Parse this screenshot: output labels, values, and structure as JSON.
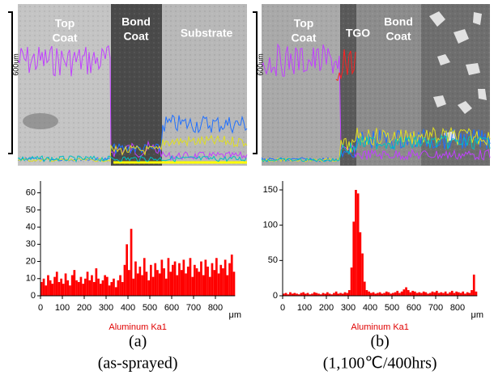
{
  "images": [
    {
      "labels": [
        [
          "Top",
          "Coat"
        ],
        [
          "Bond",
          "Coat"
        ],
        [
          "Substrate"
        ]
      ],
      "scale": "600um"
    },
    {
      "labels": [
        [
          "Top",
          "Coat"
        ],
        [
          "TGO"
        ],
        [
          "Bond",
          "Coat"
        ]
      ],
      "scale": "600um"
    }
  ],
  "chart_data": [
    {
      "type": "bar",
      "subtitle": "Aluminum Ka1",
      "x_label": "μm",
      "color": "#ff0000",
      "x": [
        0,
        10,
        20,
        30,
        40,
        50,
        60,
        70,
        80,
        90,
        100,
        110,
        120,
        130,
        140,
        150,
        160,
        170,
        180,
        190,
        200,
        210,
        220,
        230,
        240,
        250,
        260,
        270,
        280,
        290,
        300,
        310,
        320,
        330,
        340,
        350,
        360,
        370,
        380,
        390,
        400,
        410,
        420,
        430,
        440,
        450,
        460,
        470,
        480,
        490,
        500,
        510,
        520,
        530,
        540,
        550,
        560,
        570,
        580,
        590,
        600,
        610,
        620,
        630,
        640,
        650,
        660,
        670,
        680,
        690,
        700,
        710,
        720,
        730,
        740,
        750,
        760,
        770,
        780,
        790,
        800,
        810,
        820,
        830,
        840,
        850,
        860,
        870,
        880
      ],
      "values": [
        8,
        10,
        6,
        12,
        9,
        7,
        11,
        14,
        8,
        10,
        7,
        13,
        9,
        6,
        12,
        15,
        9,
        8,
        11,
        7,
        10,
        14,
        9,
        12,
        8,
        16,
        10,
        7,
        9,
        12,
        11,
        6,
        8,
        10,
        5,
        9,
        12,
        8,
        18,
        30,
        15,
        39,
        10,
        20,
        13,
        17,
        12,
        22,
        14,
        9,
        18,
        11,
        19,
        15,
        13,
        21,
        16,
        10,
        22,
        14,
        18,
        20,
        12,
        19,
        15,
        21,
        13,
        17,
        22,
        11,
        18,
        16,
        14,
        20,
        12,
        21,
        17,
        11,
        19,
        15,
        22,
        13,
        18,
        16,
        21,
        12,
        19,
        24,
        14
      ],
      "xlim": [
        0,
        890
      ],
      "ylim": [
        0,
        65
      ],
      "xticks": [
        0,
        100,
        200,
        300,
        400,
        500,
        600,
        700,
        800
      ],
      "yticks": [
        0,
        10,
        20,
        30,
        40,
        50,
        60
      ]
    },
    {
      "type": "bar",
      "subtitle": "Aluminum Ka1",
      "x_label": "μm",
      "color": "#ff0000",
      "x": [
        0,
        10,
        20,
        30,
        40,
        50,
        60,
        70,
        80,
        90,
        100,
        110,
        120,
        130,
        140,
        150,
        160,
        170,
        180,
        190,
        200,
        210,
        220,
        230,
        240,
        250,
        260,
        270,
        280,
        290,
        300,
        310,
        320,
        330,
        340,
        350,
        360,
        370,
        380,
        390,
        400,
        410,
        420,
        430,
        440,
        450,
        460,
        470,
        480,
        490,
        500,
        510,
        520,
        530,
        540,
        550,
        560,
        570,
        580,
        590,
        600,
        610,
        620,
        630,
        640,
        650,
        660,
        670,
        680,
        690,
        700,
        710,
        720,
        730,
        740,
        750,
        760,
        770,
        780,
        790,
        800,
        810,
        820,
        830,
        840,
        850,
        860,
        870,
        880
      ],
      "values": [
        3,
        4,
        2,
        5,
        3,
        4,
        3,
        2,
        4,
        5,
        3,
        4,
        2,
        3,
        5,
        4,
        3,
        2,
        4,
        3,
        5,
        3,
        2,
        4,
        6,
        3,
        4,
        3,
        5,
        4,
        8,
        40,
        105,
        150,
        145,
        90,
        60,
        20,
        8,
        6,
        4,
        5,
        3,
        4,
        5,
        3,
        4,
        6,
        5,
        3,
        4,
        5,
        7,
        4,
        6,
        9,
        12,
        8,
        5,
        7,
        6,
        4,
        5,
        4,
        6,
        5,
        3,
        4,
        6,
        5,
        7,
        4,
        5,
        4,
        6,
        3,
        5,
        7,
        4,
        6,
        5,
        4,
        6,
        3,
        5,
        4,
        8,
        30,
        6
      ],
      "xlim": [
        0,
        890
      ],
      "ylim": [
        0,
        158
      ],
      "xticks": [
        0,
        100,
        200,
        300,
        400,
        500,
        600,
        700,
        800
      ],
      "yticks": [
        0,
        50,
        100,
        150
      ]
    }
  ],
  "captions": [
    [
      "(a)",
      "(as-sprayed)"
    ],
    [
      "(b)",
      "(1,100℃/400hrs)"
    ]
  ]
}
